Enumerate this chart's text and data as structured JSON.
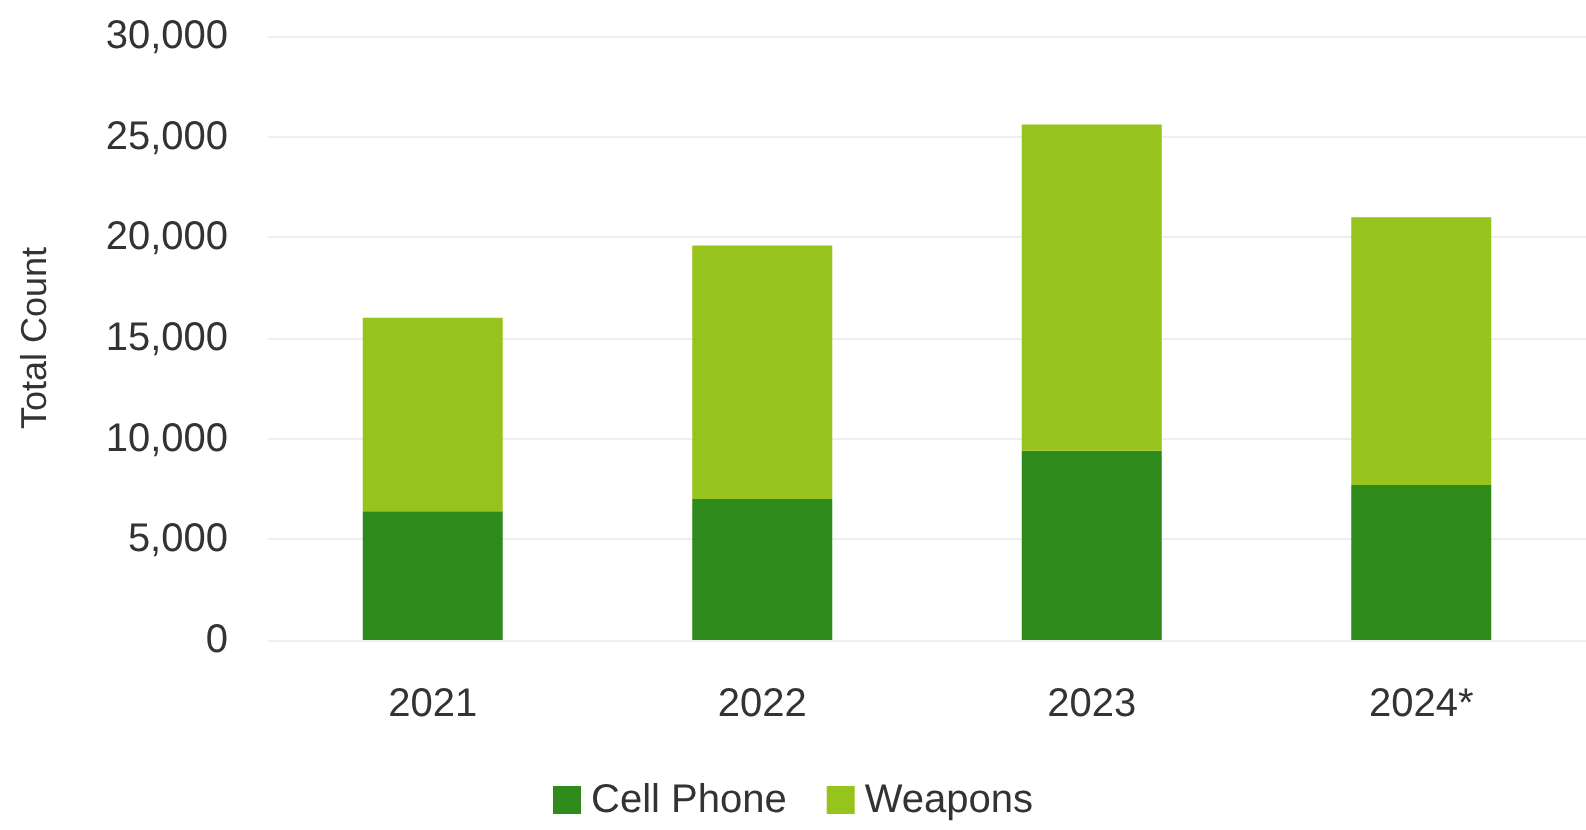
{
  "chart_data": {
    "type": "bar",
    "ylabel": "Total Count",
    "categories": [
      "2021",
      "2022",
      "2023",
      "2024*"
    ],
    "series": [
      {
        "name": "Cell Phone",
        "color": "#2f8a1c",
        "values": [
          6400,
          7000,
          9400,
          7700
        ]
      },
      {
        "name": "Weapons",
        "color": "#96c41c",
        "values": [
          9600,
          12600,
          16200,
          13300
        ]
      }
    ],
    "stacked": true,
    "ylim": [
      0,
      30000
    ],
    "yticks": [
      0,
      {
        "value": 5000,
        "label": "5,000"
      },
      {
        "value": 10000,
        "label": "10,000"
      },
      {
        "value": 15000,
        "label": "15,000"
      },
      {
        "value": 20000,
        "label": "20,000"
      },
      {
        "value": 25000,
        "label": "25,000"
      },
      {
        "value": 30000,
        "label": "30,000"
      }
    ],
    "grid": "y",
    "legend": "bottom"
  }
}
